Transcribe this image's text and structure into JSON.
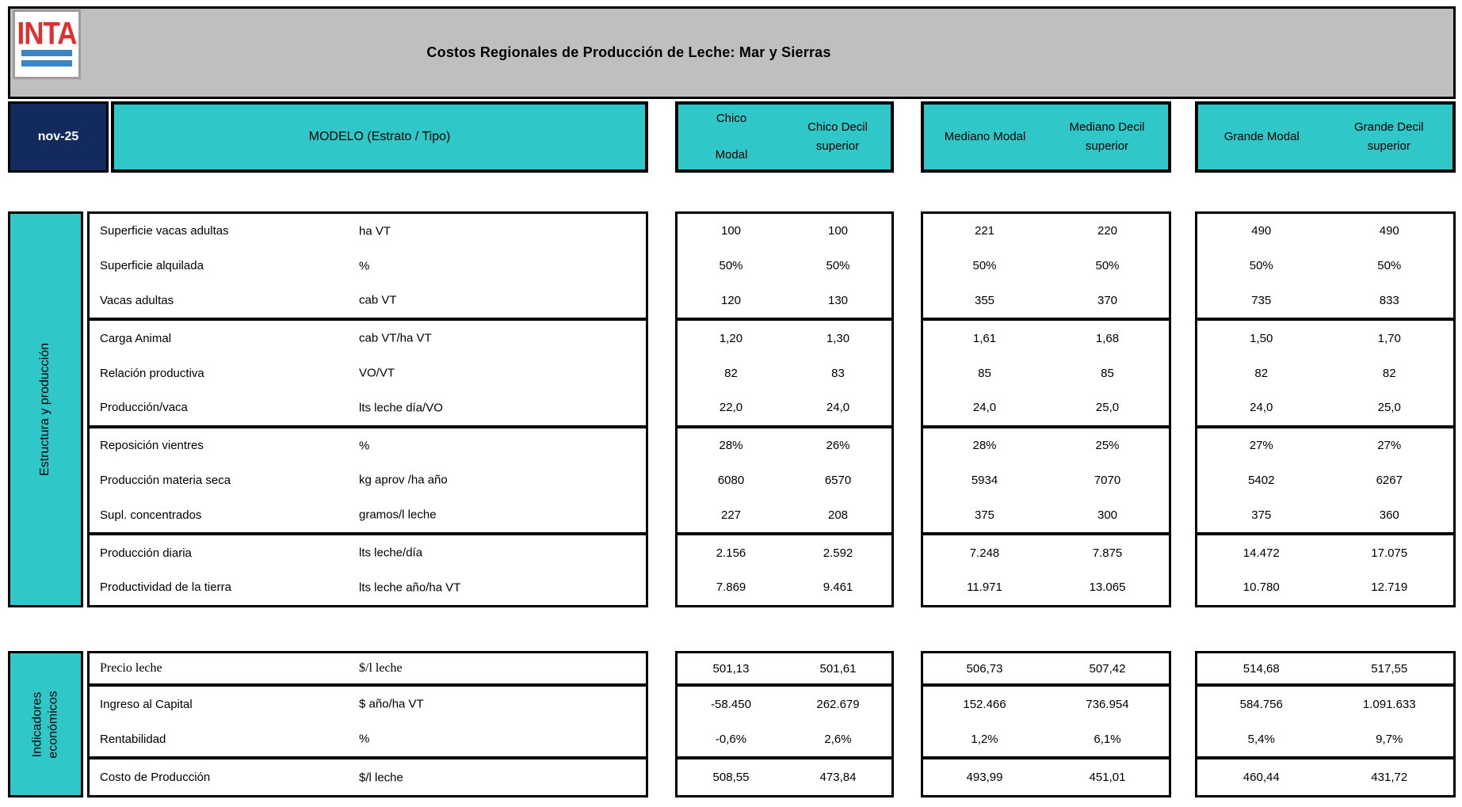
{
  "header": {
    "logo_text": "INTA",
    "title": "Costos Regionales de Producción de Leche: Mar y Sierras",
    "date": "nov-25",
    "model_label": "MODELO (Estrato / Tipo)",
    "groups": [
      {
        "col1": "Chico Modal",
        "col2": "Chico Decil superior"
      },
      {
        "col1": "Mediano Modal",
        "col2": "Mediano Decil superior"
      },
      {
        "col1": "Grande Modal",
        "col2": "Grande Decil superior"
      }
    ]
  },
  "colors": {
    "accent_teal": "#2FC7C7",
    "date_navy": "#132A5C",
    "header_gray": "#BFBFBF",
    "logo_red": "#E02F31",
    "logo_blue": "#3C85C4",
    "border_black": "#000000"
  },
  "table1": {
    "sidebar": "Estructura y producción",
    "groups": [
      {
        "rows": [
          {
            "label": "Superficie vacas adultas",
            "unit": "ha VT",
            "values": [
              "100",
              "100",
              "221",
              "220",
              "490",
              "490"
            ]
          },
          {
            "label": "Superficie alquilada",
            "unit": "%",
            "values": [
              "50%",
              "50%",
              "50%",
              "50%",
              "50%",
              "50%"
            ]
          },
          {
            "label": "Vacas adultas",
            "unit": "cab VT",
            "values": [
              "120",
              "130",
              "355",
              "370",
              "735",
              "833"
            ]
          }
        ]
      },
      {
        "rows": [
          {
            "label": "Carga Animal",
            "unit": "cab VT/ha VT",
            "values": [
              "1,20",
              "1,30",
              "1,61",
              "1,68",
              "1,50",
              "1,70"
            ]
          },
          {
            "label": "Relación productiva",
            "unit": "VO/VT",
            "values": [
              "82",
              "83",
              "85",
              "85",
              "82",
              "82"
            ]
          },
          {
            "label": "Producción/vaca",
            "unit": "lts leche día/VO",
            "values": [
              "22,0",
              "24,0",
              "24,0",
              "25,0",
              "24,0",
              "25,0"
            ]
          }
        ]
      },
      {
        "rows": [
          {
            "label": "Reposición vientres",
            "unit": "%",
            "values": [
              "28%",
              "26%",
              "28%",
              "25%",
              "27%",
              "27%"
            ]
          },
          {
            "label": "Producción materia seca",
            "unit": "kg aprov /ha año",
            "values": [
              "6080",
              "6570",
              "5934",
              "7070",
              "5402",
              "6267"
            ]
          },
          {
            "label": "Supl. concentrados",
            "unit": "gramos/l leche",
            "values": [
              "227",
              "208",
              "375",
              "300",
              "375",
              "360"
            ]
          }
        ]
      },
      {
        "rows": [
          {
            "label": "Producción diaria",
            "unit": "lts leche/día",
            "values": [
              "2.156",
              "2.592",
              "7.248",
              "7.875",
              "14.472",
              "17.075"
            ]
          },
          {
            "label": "Productividad de la tierra",
            "unit": "lts leche año/ha VT",
            "values": [
              "7.869",
              "9.461",
              "11.971",
              "13.065",
              "10.780",
              "12.719"
            ]
          }
        ]
      }
    ]
  },
  "table2": {
    "sidebar": "Indicadores económicos",
    "groups": [
      {
        "rows": [
          {
            "label": "Precio leche",
            "unit": "$/l leche",
            "values": [
              "501,13",
              "501,61",
              "506,73",
              "507,42",
              "514,68",
              "517,55"
            ]
          }
        ]
      },
      {
        "rows": [
          {
            "label": "Ingreso al Capital",
            "unit": "$ año/ha VT",
            "values": [
              "-58.450",
              "262.679",
              "152.466",
              "736.954",
              "584.756",
              "1.091.633"
            ]
          },
          {
            "label": "Rentabilidad",
            "unit": "%",
            "values": [
              "-0,6%",
              "2,6%",
              "1,2%",
              "6,1%",
              "5,4%",
              "9,7%"
            ]
          }
        ]
      },
      {
        "rows": [
          {
            "label": "Costo de Producción",
            "unit": "$/l leche",
            "values": [
              "508,55",
              "473,84",
              "493,99",
              "451,01",
              "460,44",
              "431,72"
            ]
          }
        ]
      }
    ]
  }
}
